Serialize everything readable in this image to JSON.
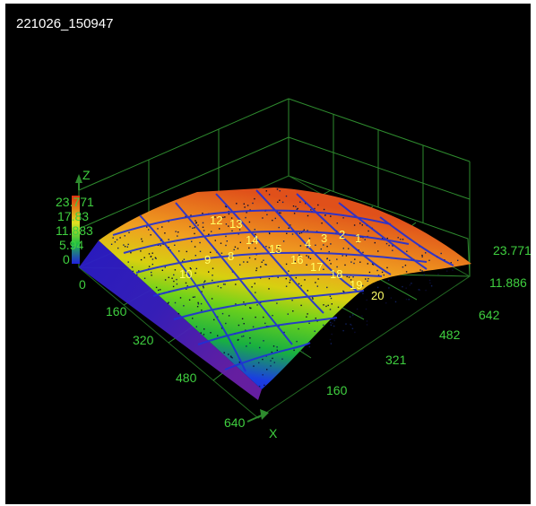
{
  "window": {
    "title": "221026_150947"
  },
  "axes": {
    "z_label": "Z",
    "x_label": "X",
    "x_ticks": [
      "0",
      "160",
      "320",
      "480",
      "640"
    ],
    "y_ticks": [
      "160",
      "321",
      "482",
      "642"
    ],
    "z_ticks_right": [
      "23.771",
      "11.886"
    ],
    "colorbar_ticks": [
      "23.771",
      "17.83",
      "11.883",
      "5.94",
      "0"
    ],
    "grid_color": "#2e8b2e",
    "label_color": "#3fcf3f"
  },
  "surface": {
    "label_color": "#ffff66",
    "cell_labels": [
      "10",
      "9",
      "8",
      "12",
      "14",
      "15",
      "16",
      "17",
      "18",
      "19",
      "20",
      "13",
      "4",
      "3",
      "2",
      "1"
    ],
    "color_low": "#1a2bd9",
    "color_high": "#e0401a"
  }
}
